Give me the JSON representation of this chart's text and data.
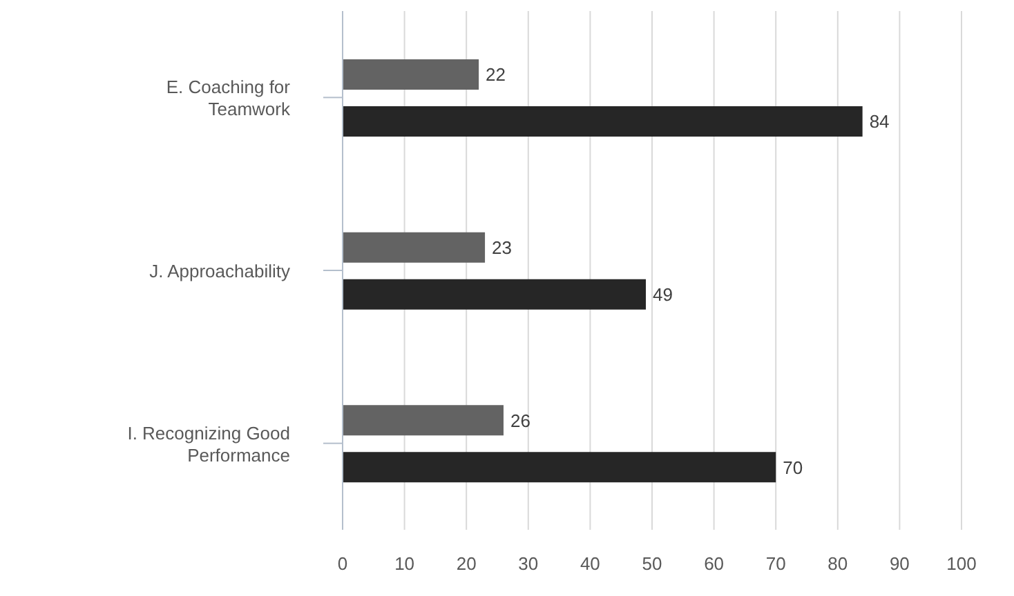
{
  "chart_data": {
    "type": "bar",
    "orientation": "horizontal",
    "categories": [
      "E. Coaching for Teamwork",
      "J. Approachability",
      "I. Recognizing Good Performance"
    ],
    "series": [
      {
        "color": "#636363",
        "values": [
          22,
          23,
          26
        ]
      },
      {
        "color": "#262626",
        "values": [
          84,
          49,
          70
        ]
      }
    ],
    "xlim": [
      0,
      100
    ],
    "xticks": [
      0,
      10,
      20,
      30,
      40,
      50,
      60,
      70,
      80,
      90,
      100
    ],
    "grid": "x",
    "data_labels": true,
    "legend": false
  }
}
